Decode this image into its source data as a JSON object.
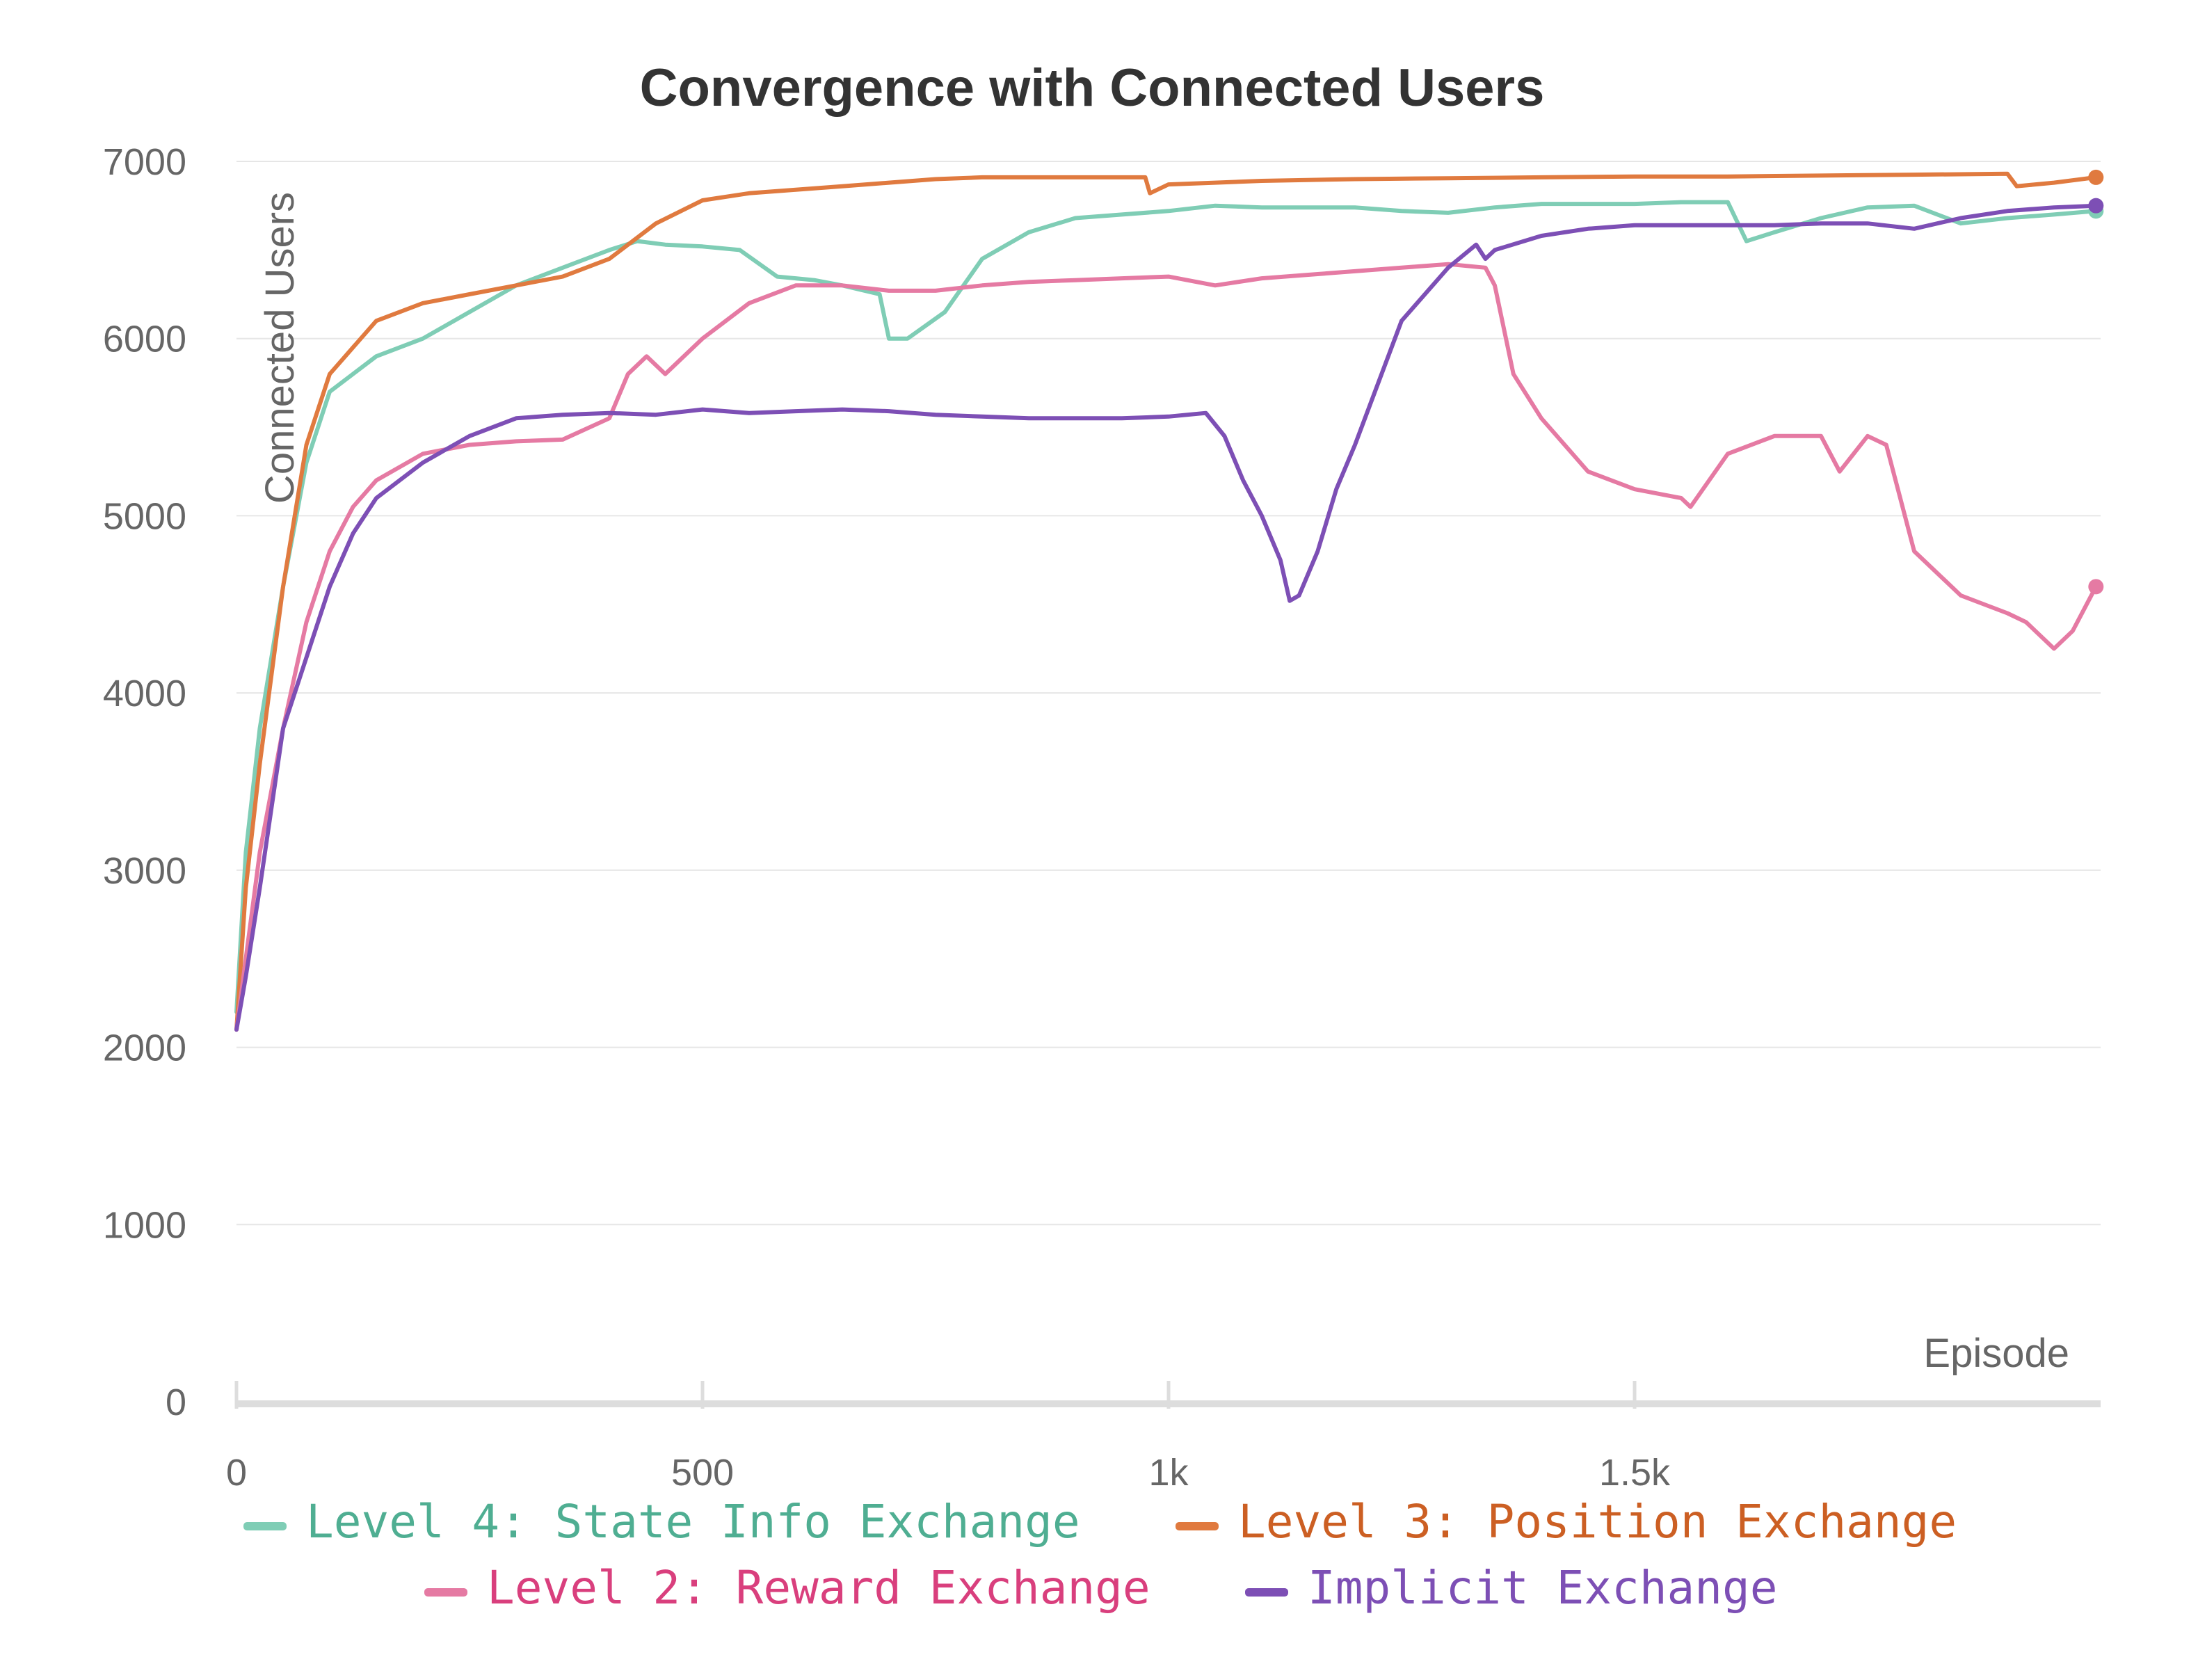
{
  "chart_data": {
    "type": "line",
    "title": "Convergence with Connected Users",
    "xlabel": "Episode",
    "ylabel": "Connected Users",
    "xlim": [
      0,
      2000
    ],
    "ylim": [
      0,
      7000
    ],
    "x_ticks": [
      {
        "value": 0,
        "label": "0"
      },
      {
        "value": 500,
        "label": "500"
      },
      {
        "value": 1000,
        "label": "1k"
      },
      {
        "value": 1500,
        "label": "1.5k"
      }
    ],
    "y_ticks": [
      {
        "value": 0,
        "label": "0"
      },
      {
        "value": 1000,
        "label": "1000"
      },
      {
        "value": 2000,
        "label": "2000"
      },
      {
        "value": 3000,
        "label": "3000"
      },
      {
        "value": 4000,
        "label": "4000"
      },
      {
        "value": 5000,
        "label": "5000"
      },
      {
        "value": 6000,
        "label": "6000"
      },
      {
        "value": 7000,
        "label": "7000"
      }
    ],
    "grid": true,
    "legend_position": "bottom",
    "series": [
      {
        "name": "Level 4: State Info Exchange",
        "color": "#7fcdb5",
        "text_color": "#4fae92",
        "x": [
          0,
          10,
          25,
          50,
          75,
          100,
          150,
          200,
          250,
          300,
          350,
          400,
          430,
          460,
          500,
          540,
          580,
          620,
          650,
          690,
          700,
          720,
          760,
          800,
          850,
          900,
          950,
          1000,
          1050,
          1100,
          1150,
          1200,
          1250,
          1300,
          1350,
          1400,
          1450,
          1500,
          1550,
          1600,
          1620,
          1650,
          1700,
          1750,
          1800,
          1850,
          1900,
          1950,
          1995
        ],
        "y": [
          2200,
          3100,
          3800,
          4600,
          5300,
          5700,
          5900,
          6000,
          6150,
          6300,
          6400,
          6500,
          6550,
          6530,
          6520,
          6500,
          6350,
          6330,
          6300,
          6250,
          6000,
          6000,
          6150,
          6450,
          6600,
          6680,
          6700,
          6720,
          6750,
          6740,
          6740,
          6740,
          6720,
          6710,
          6740,
          6760,
          6760,
          6760,
          6770,
          6770,
          6550,
          6600,
          6680,
          6740,
          6750,
          6650,
          6680,
          6700,
          6720
        ]
      },
      {
        "name": "Level 3: Position Exchange",
        "color": "#e07a3f",
        "text_color": "#cc5f23",
        "x": [
          0,
          10,
          25,
          50,
          75,
          100,
          150,
          200,
          250,
          300,
          350,
          400,
          450,
          500,
          550,
          600,
          650,
          700,
          750,
          800,
          850,
          900,
          950,
          975,
          980,
          1000,
          1050,
          1100,
          1200,
          1300,
          1400,
          1500,
          1600,
          1700,
          1800,
          1900,
          1910,
          1950,
          1995
        ],
        "y": [
          2100,
          2900,
          3600,
          4600,
          5400,
          5800,
          6100,
          6200,
          6250,
          6300,
          6350,
          6450,
          6650,
          6780,
          6820,
          6840,
          6860,
          6880,
          6900,
          6910,
          6910,
          6910,
          6910,
          6910,
          6820,
          6870,
          6880,
          6890,
          6900,
          6905,
          6910,
          6915,
          6915,
          6920,
          6925,
          6930,
          6860,
          6880,
          6910
        ]
      },
      {
        "name": "Level 2: Reward Exchange",
        "color": "#e57aa3",
        "text_color": "#d93f7d",
        "x": [
          0,
          10,
          25,
          50,
          75,
          100,
          125,
          150,
          200,
          250,
          300,
          350,
          400,
          420,
          440,
          460,
          470,
          500,
          550,
          600,
          650,
          700,
          750,
          800,
          850,
          900,
          950,
          1000,
          1050,
          1100,
          1150,
          1200,
          1250,
          1300,
          1340,
          1350,
          1370,
          1400,
          1450,
          1500,
          1550,
          1560,
          1600,
          1650,
          1700,
          1720,
          1750,
          1770,
          1800,
          1850,
          1900,
          1920,
          1950,
          1970,
          1995
        ],
        "y": [
          2100,
          2500,
          3100,
          3800,
          4400,
          4800,
          5050,
          5200,
          5350,
          5400,
          5420,
          5430,
          5550,
          5800,
          5900,
          5800,
          5850,
          6000,
          6200,
          6300,
          6300,
          6270,
          6270,
          6300,
          6320,
          6330,
          6340,
          6350,
          6300,
          6340,
          6360,
          6380,
          6400,
          6420,
          6400,
          6300,
          5800,
          5550,
          5250,
          5150,
          5100,
          5050,
          5350,
          5450,
          5450,
          5250,
          5450,
          5400,
          4800,
          4550,
          4450,
          4400,
          4250,
          4350,
          4600
        ]
      },
      {
        "name": "Implicit Exchange",
        "color": "#7d4fb5",
        "text_color": "#7d4fb5",
        "x": [
          0,
          10,
          25,
          50,
          75,
          100,
          125,
          150,
          200,
          250,
          300,
          350,
          400,
          450,
          500,
          550,
          600,
          650,
          700,
          750,
          800,
          850,
          900,
          950,
          1000,
          1040,
          1060,
          1080,
          1100,
          1120,
          1130,
          1140,
          1160,
          1180,
          1200,
          1250,
          1300,
          1330,
          1340,
          1350,
          1400,
          1450,
          1500,
          1550,
          1600,
          1650,
          1700,
          1750,
          1800,
          1850,
          1900,
          1950,
          1995
        ],
        "y": [
          2100,
          2400,
          2900,
          3800,
          4200,
          4600,
          4900,
          5100,
          5300,
          5450,
          5550,
          5570,
          5580,
          5570,
          5600,
          5580,
          5590,
          5600,
          5590,
          5570,
          5560,
          5550,
          5550,
          5550,
          5560,
          5580,
          5450,
          5200,
          5000,
          4750,
          4520,
          4550,
          4800,
          5150,
          5400,
          6100,
          6400,
          6530,
          6450,
          6500,
          6580,
          6620,
          6640,
          6640,
          6640,
          6640,
          6650,
          6650,
          6620,
          6680,
          6720,
          6740,
          6750
        ]
      }
    ]
  }
}
